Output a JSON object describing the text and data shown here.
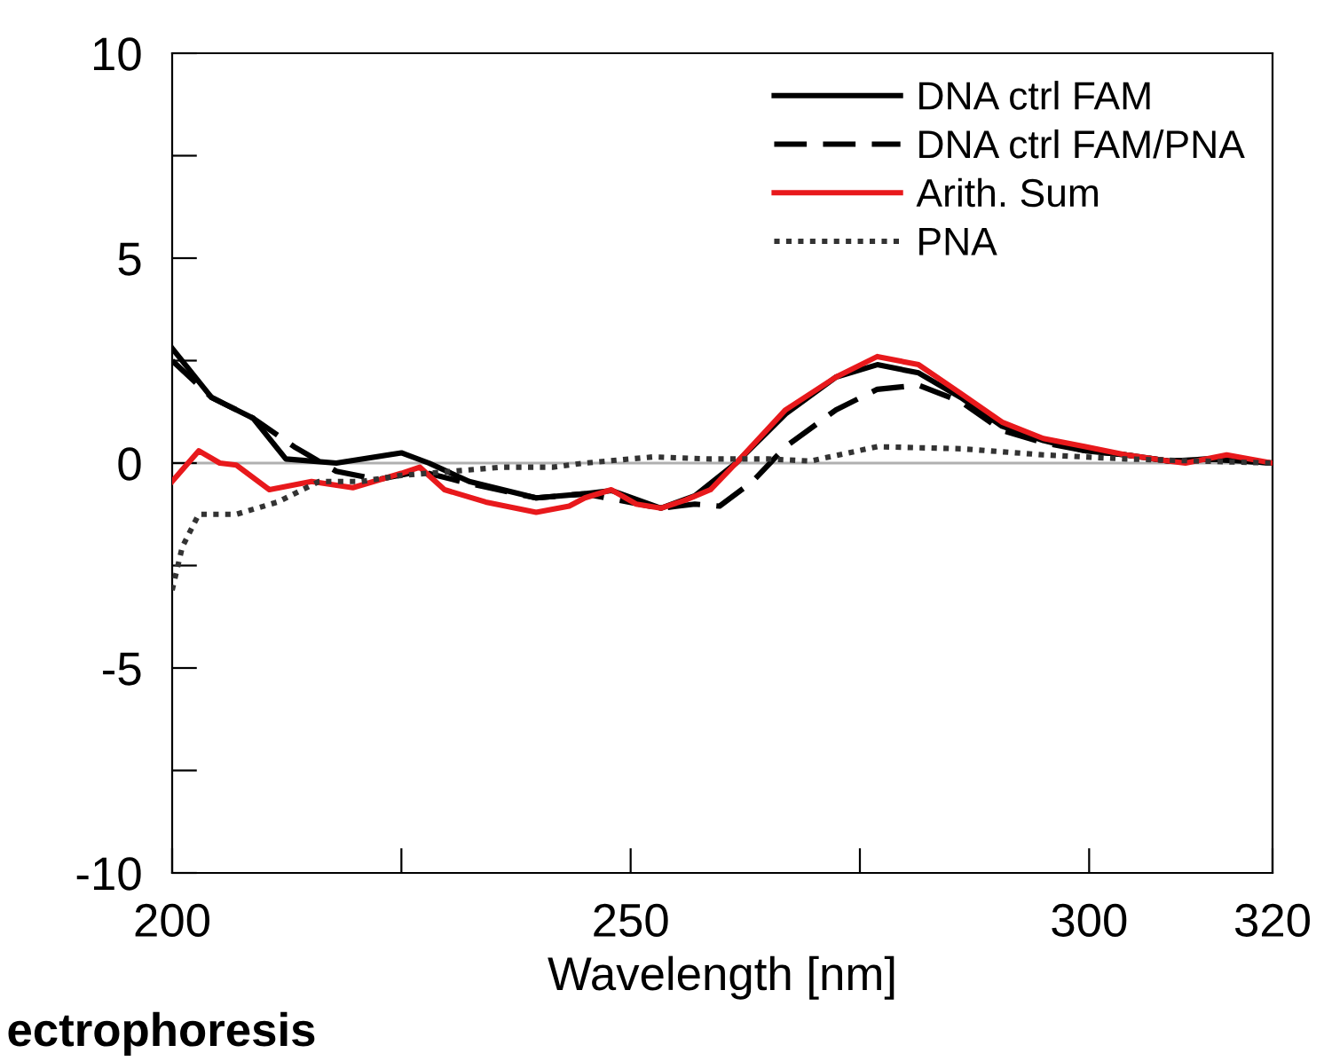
{
  "chart_data": {
    "type": "line",
    "xlabel": "Wavelength [nm]",
    "xlim": [
      200,
      320
    ],
    "ylim": [
      -10,
      10
    ],
    "xticks": [
      200,
      {
        "value": 225,
        "label": null
      },
      250,
      {
        "value": 275,
        "label": null
      },
      300,
      320
    ],
    "yticks": [
      -10,
      {
        "value": -7.5,
        "label": null
      },
      -5,
      {
        "value": -2.5,
        "label": null
      },
      0,
      {
        "value": 2.5,
        "label": null
      },
      5,
      {
        "value": 7.5,
        "label": null
      },
      10
    ],
    "legend": "top right",
    "grid": false,
    "ref_lines": [
      {
        "axis": "y",
        "value": 0,
        "label": null,
        "color": "#b0b0b0",
        "line_style": "solid"
      }
    ],
    "annotations": [
      "ectrophoresis"
    ],
    "series": [
      {
        "name": "DNA ctrl FAM",
        "color": "#000000",
        "line_style": "solid",
        "x": [
          200,
          204.3,
          208.8,
          212.4,
          217.9,
          225,
          228,
          232.4,
          239.7,
          245,
          247.9,
          253.3,
          257,
          261.5,
          266.9,
          272.4,
          276.9,
          281.4,
          286,
          290.5,
          295,
          299.6,
          304,
          308.7,
          313.2,
          320
        ],
        "values": [
          2.8,
          1.6,
          1.1,
          0.1,
          0,
          0.25,
          0,
          -0.45,
          -0.85,
          -0.75,
          -0.67,
          -1.1,
          -0.8,
          0,
          1.2,
          2.1,
          2.4,
          2.2,
          1.6,
          0.9,
          0.55,
          0.3,
          0.2,
          0.05,
          0.1,
          0
        ]
      },
      {
        "name": "DNA ctrl FAM/PNA",
        "color": "#000000",
        "line_style": "dashed",
        "x": [
          200,
          204.3,
          208.8,
          213.3,
          217.9,
          222.4,
          227,
          232.4,
          239.7,
          245,
          253.3,
          257,
          259.7,
          263.3,
          266.9,
          272.4,
          276.9,
          281.4,
          286,
          290.5,
          295,
          299.6,
          304,
          308.7,
          313.2,
          320
        ],
        "values": [
          2.5,
          1.6,
          1.1,
          0.4,
          -0.2,
          -0.4,
          -0.2,
          -0.5,
          -0.85,
          -0.75,
          -1.1,
          -1.0,
          -1.05,
          -0.45,
          0.4,
          1.3,
          1.8,
          1.9,
          1.5,
          0.8,
          0.5,
          0.3,
          0.2,
          0.05,
          0.1,
          0
        ]
      },
      {
        "name": "Arith. Sum",
        "color": "#e8191c",
        "line_style": "solid",
        "x": [
          200,
          202.9,
          205.2,
          207,
          210.6,
          215.2,
          219.7,
          225,
          227,
          229.7,
          234.2,
          239.7,
          243.3,
          245,
          247.9,
          250.6,
          253.3,
          256,
          258.7,
          261.5,
          266.9,
          272.4,
          276.9,
          281.4,
          286,
          290.5,
          295,
          299.6,
          304,
          308.7,
          310.5,
          315,
          320
        ],
        "values": [
          -0.45,
          0.3,
          0,
          -0.05,
          -0.65,
          -0.45,
          -0.6,
          -0.25,
          -0.1,
          -0.65,
          -0.95,
          -1.2,
          -1.05,
          -0.85,
          -0.65,
          -1.0,
          -1.1,
          -0.9,
          -0.65,
          0,
          1.3,
          2.1,
          2.6,
          2.4,
          1.7,
          1.0,
          0.6,
          0.4,
          0.2,
          0.05,
          0,
          0.2,
          0
        ]
      },
      {
        "name": "PNA",
        "color": "#333333",
        "line_style": "dotted",
        "x": [
          200,
          201.1,
          202.9,
          207,
          211.5,
          216,
          220.6,
          225,
          230.6,
          236,
          241.5,
          245,
          252.4,
          258.7,
          265,
          269.6,
          276.9,
          286,
          295,
          304,
          320
        ],
        "values": [
          -3.1,
          -2.05,
          -1.25,
          -1.25,
          -0.95,
          -0.45,
          -0.45,
          -0.3,
          -0.2,
          -0.1,
          -0.1,
          0,
          0.15,
          0.1,
          0.1,
          0.05,
          0.4,
          0.35,
          0.2,
          0.1,
          0
        ]
      }
    ]
  }
}
